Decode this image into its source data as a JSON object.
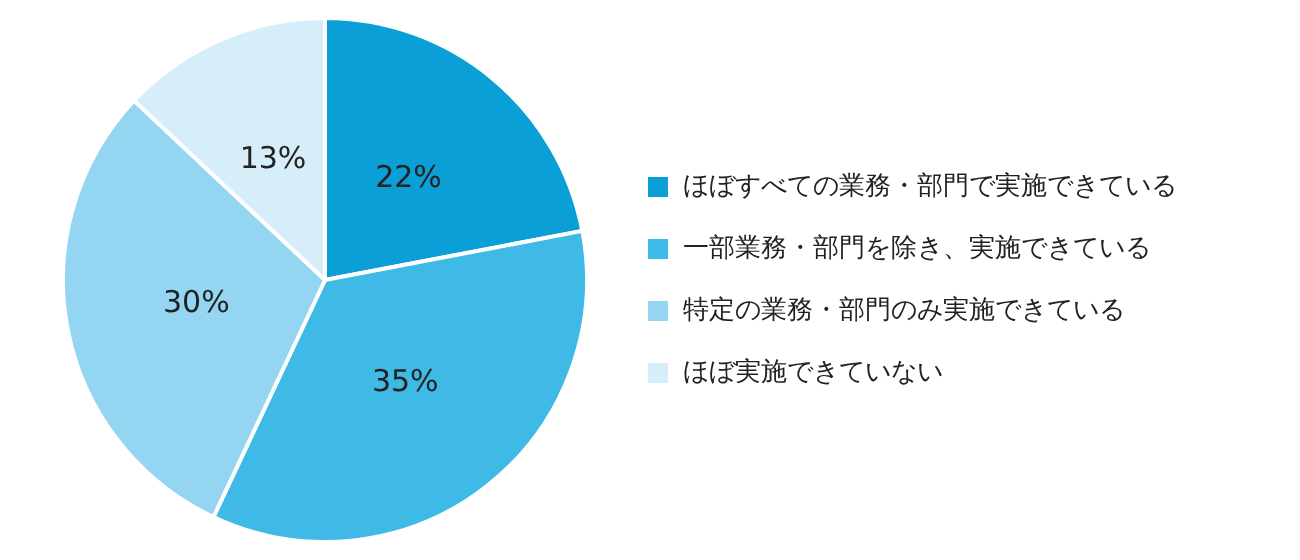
{
  "chart_data": {
    "type": "pie",
    "categories": [
      "ほぼすべての業務・部門で実施できている",
      "一部業務・部門を除き、実施できている",
      "特定の業務・部門のみ実施できている",
      "ほぼ実施できていない"
    ],
    "values": [
      22,
      35,
      30,
      13
    ],
    "colors": [
      "#0b9fd8",
      "#3fb9e6",
      "#94d6f1",
      "#d6eefa"
    ],
    "value_labels": [
      "22%",
      "35%",
      "30%",
      "13%"
    ],
    "legend": "right"
  }
}
